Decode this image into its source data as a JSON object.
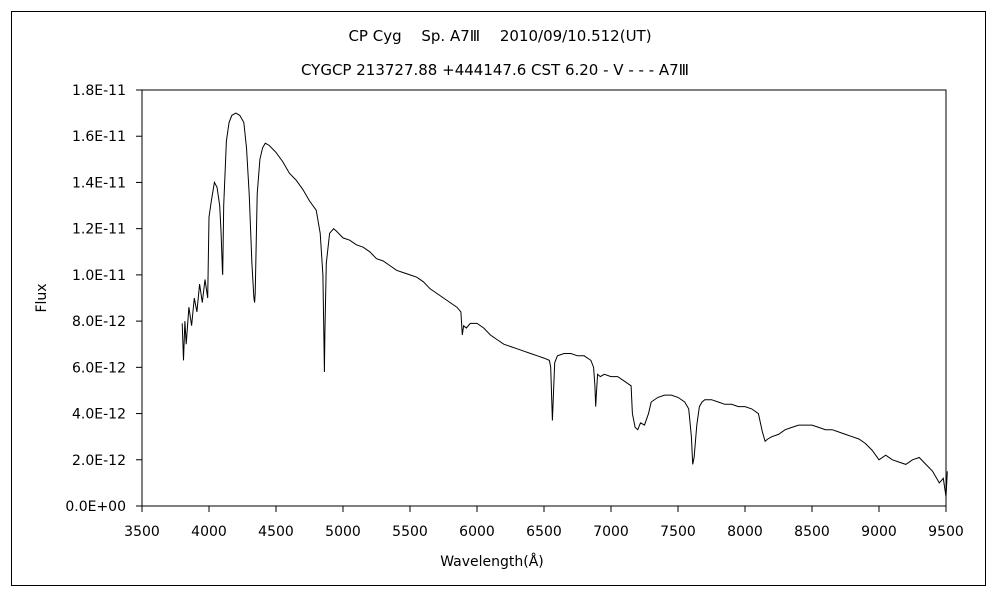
{
  "chart_data": {
    "type": "line",
    "title": "CP Cyg　 Sp. A7Ⅲ　 2010/09/10.512(UT)",
    "subtitle": "CYGCP 213727.88 +444147.6 CST 6.20 - V - - - A7Ⅲ",
    "xlabel": "Wavelength(Å)",
    "ylabel": "Flux",
    "xlim": [
      3500,
      9500
    ],
    "ylim": [
      0,
      1.8e-11
    ],
    "x_ticks": [
      "3500",
      "4000",
      "4500",
      "5000",
      "5500",
      "6000",
      "6500",
      "7000",
      "7500",
      "8000",
      "8500",
      "9000",
      "9500"
    ],
    "y_ticks": [
      "0.0E+00",
      "2.0E-12",
      "4.0E-12",
      "6.0E-12",
      "8.0E-12",
      "1.0E-11",
      "1.2E-11",
      "1.4E-11",
      "1.6E-11",
      "1.8E-11"
    ],
    "grid": false,
    "legend": "none",
    "series": [
      {
        "color": "#000000",
        "x": [
          3800,
          3810,
          3820,
          3830,
          3850,
          3870,
          3890,
          3910,
          3930,
          3950,
          3970,
          3990,
          4000,
          4020,
          4040,
          4060,
          4080,
          4090,
          4100,
          4102,
          4110,
          4130,
          4150,
          4170,
          4200,
          4230,
          4260,
          4280,
          4300,
          4320,
          4335,
          4340,
          4345,
          4360,
          4380,
          4400,
          4420,
          4450,
          4500,
          4550,
          4600,
          4650,
          4700,
          4750,
          4800,
          4830,
          4850,
          4858,
          4861,
          4865,
          4875,
          4900,
          4930,
          4950,
          5000,
          5050,
          5100,
          5150,
          5200,
          5250,
          5300,
          5350,
          5400,
          5450,
          5500,
          5550,
          5600,
          5650,
          5700,
          5750,
          5800,
          5850,
          5880,
          5890,
          5900,
          5920,
          5950,
          6000,
          6050,
          6100,
          6150,
          6200,
          6250,
          6300,
          6350,
          6400,
          6450,
          6500,
          6540,
          6550,
          6556,
          6563,
          6570,
          6580,
          6600,
          6650,
          6700,
          6750,
          6800,
          6850,
          6870,
          6880,
          6886,
          6890,
          6900,
          6920,
          6950,
          7000,
          7050,
          7100,
          7150,
          7160,
          7180,
          7200,
          7220,
          7250,
          7280,
          7300,
          7350,
          7400,
          7450,
          7500,
          7550,
          7580,
          7600,
          7610,
          7620,
          7640,
          7660,
          7680,
          7700,
          7750,
          7800,
          7850,
          7900,
          7950,
          8000,
          8050,
          8100,
          8130,
          8150,
          8170,
          8200,
          8250,
          8300,
          8350,
          8400,
          8450,
          8500,
          8550,
          8600,
          8650,
          8700,
          8750,
          8800,
          8850,
          8900,
          8950,
          9000,
          9050,
          9100,
          9150,
          9200,
          9250,
          9300,
          9350,
          9400,
          9450,
          9480,
          9500,
          9510
        ],
        "values": [
          7.9e-12,
          6.3e-12,
          8e-12,
          7e-12,
          8.6e-12,
          7.8e-12,
          9e-12,
          8.4e-12,
          9.6e-12,
          8.8e-12,
          9.8e-12,
          9e-12,
          1.25e-11,
          1.33e-11,
          1.4e-11,
          1.38e-11,
          1.3e-11,
          1.18e-11,
          1.02e-11,
          1e-11,
          1.3e-11,
          1.58e-11,
          1.66e-11,
          1.69e-11,
          1.7e-11,
          1.69e-11,
          1.66e-11,
          1.55e-11,
          1.35e-11,
          1.05e-11,
          9e-12,
          8.8e-12,
          9.2e-12,
          1.35e-11,
          1.5e-11,
          1.55e-11,
          1.57e-11,
          1.56e-11,
          1.53e-11,
          1.49e-11,
          1.44e-11,
          1.41e-11,
          1.37e-11,
          1.32e-11,
          1.28e-11,
          1.18e-11,
          1e-11,
          7e-12,
          5.8e-12,
          7.5e-12,
          1.05e-11,
          1.18e-11,
          1.2e-11,
          1.19e-11,
          1.16e-11,
          1.15e-11,
          1.13e-11,
          1.12e-11,
          1.1e-11,
          1.07e-11,
          1.06e-11,
          1.04e-11,
          1.02e-11,
          1.01e-11,
          1e-11,
          9.9e-12,
          9.7e-12,
          9.4e-12,
          9.2e-12,
          9e-12,
          8.8e-12,
          8.6e-12,
          8.4e-12,
          7.4e-12,
          7.8e-12,
          7.7e-12,
          7.9e-12,
          7.9e-12,
          7.7e-12,
          7.4e-12,
          7.2e-12,
          7e-12,
          6.9e-12,
          6.8e-12,
          6.7e-12,
          6.6e-12,
          6.5e-12,
          6.4e-12,
          6.3e-12,
          6e-12,
          4.9e-12,
          3.7e-12,
          4.8e-12,
          6.2e-12,
          6.5e-12,
          6.6e-12,
          6.6e-12,
          6.5e-12,
          6.5e-12,
          6.3e-12,
          6e-12,
          5.2e-12,
          4.3e-12,
          4.8e-12,
          5.7e-12,
          5.6e-12,
          5.7e-12,
          5.6e-12,
          5.6e-12,
          5.4e-12,
          5.2e-12,
          4e-12,
          3.4e-12,
          3.3e-12,
          3.6e-12,
          3.5e-12,
          4e-12,
          4.5e-12,
          4.7e-12,
          4.8e-12,
          4.8e-12,
          4.7e-12,
          4.5e-12,
          4.2e-12,
          3e-12,
          1.8e-12,
          2.1e-12,
          3.5e-12,
          4.3e-12,
          4.5e-12,
          4.6e-12,
          4.6e-12,
          4.5e-12,
          4.4e-12,
          4.4e-12,
          4.3e-12,
          4.3e-12,
          4.2e-12,
          4e-12,
          3.2e-12,
          2.8e-12,
          2.9e-12,
          3e-12,
          3.1e-12,
          3.3e-12,
          3.4e-12,
          3.5e-12,
          3.5e-12,
          3.5e-12,
          3.4e-12,
          3.3e-12,
          3.3e-12,
          3.2e-12,
          3.1e-12,
          3e-12,
          2.9e-12,
          2.7e-12,
          2.4e-12,
          2e-12,
          2.2e-12,
          2e-12,
          1.9e-12,
          1.8e-12,
          2e-12,
          2.1e-12,
          1.8e-12,
          1.5e-12,
          1e-12,
          1.2e-12,
          4e-13,
          1.5e-12
        ]
      }
    ]
  }
}
